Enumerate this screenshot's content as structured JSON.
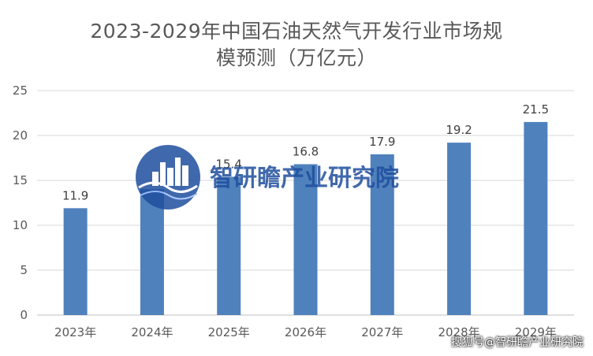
{
  "chart_data": {
    "type": "bar",
    "title": "2023-2029年中国石油天然气开发行业市场规模预测（万亿元）",
    "title_lines": [
      "2023-2029年中国石油天然气开发行业市场规",
      "模预测（万亿元）"
    ],
    "categories": [
      "2023年",
      "2024年",
      "2025年",
      "2026年",
      "2027年",
      "2028年",
      "2029年"
    ],
    "values": [
      11.9,
      14.0,
      15.4,
      16.8,
      17.9,
      19.2,
      21.5
    ],
    "data_labels": [
      "11.9",
      "",
      "15.4",
      "16.8",
      "17.9",
      "19.2",
      "21.5"
    ],
    "y_ticks": [
      "0",
      "5",
      "10",
      "15",
      "20",
      "25"
    ],
    "ylim": [
      0,
      25
    ],
    "grid": true,
    "legend": "none",
    "bar_color": "#4F81BD"
  },
  "watermark": {
    "text": "智研瞻产业研究院",
    "color": "#1F4E9E"
  },
  "footer": {
    "text": "搜狐号@智研瞻产业研究院"
  }
}
